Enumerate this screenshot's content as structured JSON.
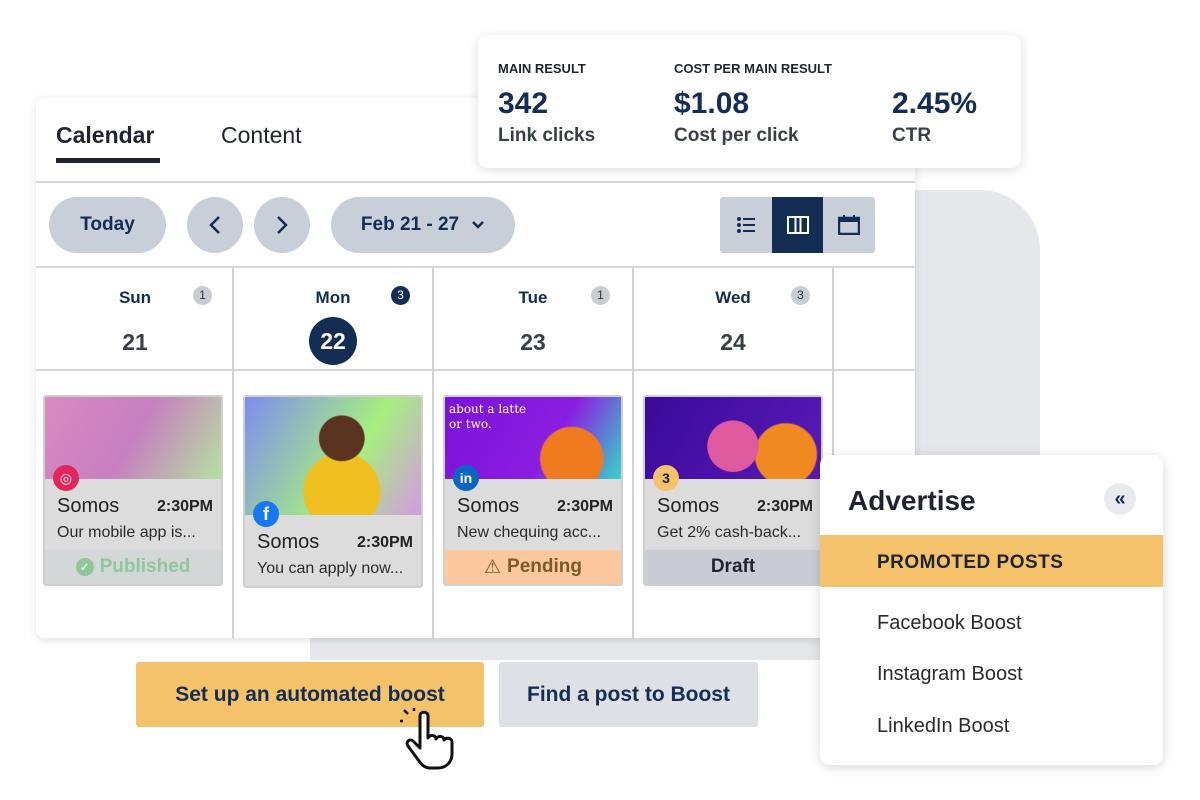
{
  "tabs": [
    {
      "label": "Calendar",
      "active": true
    },
    {
      "label": "Content",
      "active": false
    }
  ],
  "toolbar": {
    "today": "Today",
    "prev_icon": "chevron-left",
    "next_icon": "chevron-right",
    "date_range": "Feb 21 - 27",
    "view_icons": [
      "list-icon",
      "week-columns-icon",
      "calendar-icon"
    ],
    "active_view": "week-columns"
  },
  "days": [
    {
      "name": "Sun",
      "date": "21",
      "count": "1",
      "today": false
    },
    {
      "name": "Mon",
      "date": "22",
      "count": "3",
      "today": true
    },
    {
      "name": "Tue",
      "date": "23",
      "count": "1",
      "today": false
    },
    {
      "name": "Wed",
      "date": "24",
      "count": "3",
      "today": false
    }
  ],
  "posts": [
    {
      "network": "instagram",
      "author": "Somos",
      "time": "2:30PM",
      "text": "Our mobile app is...",
      "status": "Published"
    },
    {
      "network": "facebook",
      "author": "Somos",
      "time": "2:30PM",
      "text": "You can apply now...",
      "status": ""
    },
    {
      "network": "linkedin",
      "author": "Somos",
      "time": "2:30PM",
      "text": "New chequing acc...",
      "status": "Pending",
      "image_text": "about a latte or two."
    },
    {
      "network": "multi",
      "network_count": "3",
      "author": "Somos",
      "time": "2:30PM",
      "text": "Get 2% cash-back...",
      "status": "Draft"
    }
  ],
  "metrics": {
    "main_label": "MAIN RESULT",
    "main_value": "342",
    "main_sub": "Link clicks",
    "cost_label": "COST PER MAIN RESULT",
    "cost_value": "$1.08",
    "cost_sub": "Cost per click",
    "ctr_value": "2.45%",
    "ctr_sub": "CTR"
  },
  "buttons": {
    "auto_boost": "Set up an automated boost",
    "find_post": "Find a post to Boost"
  },
  "advertise": {
    "title": "Advertise",
    "collapse_icon": "«",
    "section": "PROMOTED POSTS",
    "items": [
      "Facebook Boost",
      "Instagram Boost",
      "LinkedIn Boost"
    ]
  },
  "colors": {
    "navy": "#132d55",
    "yellow": "#f3c26b",
    "published": "#8fc79a",
    "pending": "#fdc89d",
    "draft": "#c9cdd3"
  }
}
